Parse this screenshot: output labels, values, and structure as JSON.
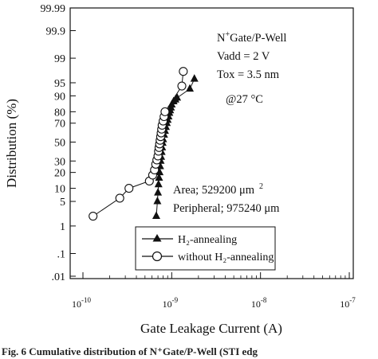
{
  "chart_data": {
    "type": "scatter",
    "title": "",
    "xlabel": "Gate Leakage Current (A)",
    "ylabel": "Distribution (%)",
    "x_scale": "log",
    "y_scale": "normal-probability",
    "xlim": [
      1e-10,
      1e-07
    ],
    "ylim": [
      0.01,
      99.99
    ],
    "x_ticks": [
      {
        "value": 1e-10,
        "base": "10",
        "exp": "-10"
      },
      {
        "value": 1e-09,
        "base": "10",
        "exp": "-9"
      },
      {
        "value": 1e-08,
        "base": "10",
        "exp": "-8"
      },
      {
        "value": 1e-07,
        "base": "10",
        "exp": "-7"
      }
    ],
    "y_ticks": [
      {
        "value": 0.01,
        "label": ".01"
      },
      {
        "value": 0.1,
        "label": ".1"
      },
      {
        "value": 1,
        "label": "1"
      },
      {
        "value": 5,
        "label": "5"
      },
      {
        "value": 10,
        "label": "10"
      },
      {
        "value": 20,
        "label": "20"
      },
      {
        "value": 30,
        "label": "30"
      },
      {
        "value": 50,
        "label": "50"
      },
      {
        "value": 70,
        "label": "70"
      },
      {
        "value": 80,
        "label": "80"
      },
      {
        "value": 90,
        "label": "90"
      },
      {
        "value": 95,
        "label": "95"
      },
      {
        "value": 99,
        "label": "99"
      },
      {
        "value": 99.9,
        "label": "99.9"
      },
      {
        "value": 99.99,
        "label": "99.99"
      }
    ],
    "annotations": {
      "device_line1": "N",
      "device_sup": "+",
      "device_line1_rest": "Gate/P-Well",
      "vadd": "Vadd = 2 V",
      "tox": "Tox = 3.5 nm",
      "temp": "@27  °C",
      "area": "Area; 529200 μm",
      "area_sup": "2",
      "peripheral": "Peripheral; 975240 μm"
    },
    "legend": {
      "placement": "bottom-center",
      "entries": [
        "H₂-annealing",
        "without H₂-annealing"
      ]
    },
    "series": [
      {
        "name": "H₂-annealing",
        "marker": "filled-triangle",
        "x": [
          6.7e-10,
          6.9e-10,
          7e-10,
          7.1e-10,
          7.2e-10,
          7.3e-10,
          7.4e-10,
          7.5e-10,
          7.6e-10,
          7.7e-10,
          7.8e-10,
          7.9e-10,
          8e-10,
          8.2e-10,
          8.4e-10,
          8.6e-10,
          8.8e-10,
          9e-10,
          9.2e-10,
          9.4e-10,
          9.6e-10,
          9.8e-10,
          1e-09,
          1.05e-09,
          1.1e-09,
          1.15e-09,
          1.6e-09,
          1.8e-09
        ],
        "y": [
          2,
          5,
          8,
          12,
          16,
          20,
          25,
          30,
          34,
          39,
          44,
          49,
          53,
          58,
          62,
          66,
          70,
          73,
          76,
          79,
          81,
          83,
          85,
          87,
          88,
          89,
          93,
          96
        ]
      },
      {
        "name": "without H₂-annealing",
        "marker": "open-circle",
        "x": [
          1.3e-10,
          2.6e-10,
          3.3e-10,
          5.6e-10,
          6.1e-10,
          6.4e-10,
          6.6e-10,
          6.8e-10,
          7e-10,
          7.1e-10,
          7.2e-10,
          7.3e-10,
          7.4e-10,
          7.5e-10,
          7.6e-10,
          7.7e-10,
          7.8e-10,
          8e-10,
          8.2e-10,
          8.4e-10,
          1.3e-09,
          1.35e-09
        ],
        "y": [
          2,
          6,
          10,
          14,
          18,
          22,
          27,
          31,
          35,
          40,
          44,
          48,
          52,
          56,
          60,
          64,
          68,
          72,
          76,
          80,
          94,
          97.5
        ]
      }
    ]
  },
  "caption": "Fig. 6   Cumulative distribution of N⁺Gate/P-Well (STI edg"
}
